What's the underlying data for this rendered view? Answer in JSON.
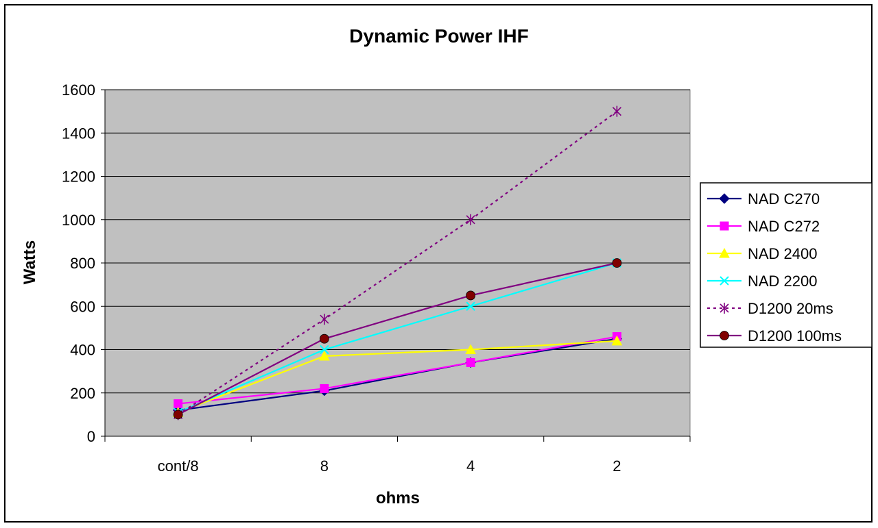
{
  "chart_data": {
    "type": "line",
    "title": "Dynamic Power IHF",
    "xlabel": "ohms",
    "ylabel": "Watts",
    "categories": [
      "cont/8",
      "8",
      "4",
      "2"
    ],
    "ylim": [
      0,
      1600
    ],
    "yticks": [
      0,
      200,
      400,
      600,
      800,
      1000,
      1200,
      1400,
      1600
    ],
    "grid": true,
    "legend_position": "right",
    "plot_background": "#c0c0c0",
    "series": [
      {
        "name": "NAD C270",
        "values": [
          120,
          210,
          340,
          450
        ],
        "color": "#000080",
        "marker": "diamond",
        "dash": "solid"
      },
      {
        "name": "NAD C272",
        "values": [
          150,
          220,
          340,
          460
        ],
        "color": "#ff00ff",
        "marker": "square",
        "dash": "solid"
      },
      {
        "name": "NAD 2400",
        "values": [
          110,
          370,
          400,
          440
        ],
        "color": "#ffff00",
        "marker": "triangle",
        "dash": "solid"
      },
      {
        "name": "NAD 2200",
        "values": [
          110,
          400,
          600,
          800
        ],
        "color": "#00ffff",
        "marker": "x",
        "dash": "solid"
      },
      {
        "name": "D1200 20ms",
        "values": [
          100,
          540,
          1000,
          1500
        ],
        "color": "#800080",
        "marker": "star",
        "dash": "dotted"
      },
      {
        "name": "D1200 100ms",
        "values": [
          100,
          450,
          650,
          800
        ],
        "color": "#800080",
        "marker": "circle",
        "dash": "solid",
        "marker_fill": "#800000"
      }
    ]
  }
}
